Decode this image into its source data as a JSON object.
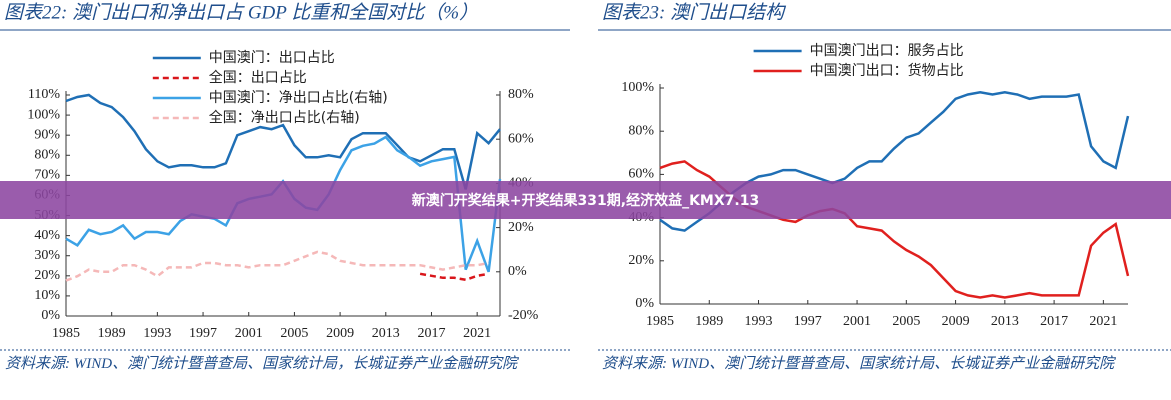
{
  "banner": "新澳门开奖结果+开奖结果331期,经济效益_KMX7.13",
  "chart_data": [
    {
      "type": "line",
      "title": "图表22:  澳门出口和净出口占 GDP 比重和全国对比（%）",
      "source": "资料来源: WIND、澳门统计暨普查局、国家统计局，长城证券产业金融研究院",
      "x": [
        1985,
        1986,
        1987,
        1988,
        1989,
        1990,
        1991,
        1992,
        1993,
        1994,
        1995,
        1996,
        1997,
        1998,
        1999,
        2000,
        2001,
        2002,
        2003,
        2004,
        2005,
        2006,
        2007,
        2008,
        2009,
        2010,
        2011,
        2012,
        2013,
        2014,
        2015,
        2016,
        2017,
        2018,
        2019,
        2020,
        2021,
        2022,
        2023
      ],
      "xlim": [
        1985,
        2023
      ],
      "xticks": [
        1985,
        1989,
        1993,
        1997,
        2001,
        2005,
        2009,
        2013,
        2017,
        2021
      ],
      "ylim": [
        0,
        110
      ],
      "yticks": [
        {
          "value": 0,
          "label": "0%"
        },
        {
          "value": 10,
          "label": "10%"
        },
        {
          "value": 20,
          "label": "20%"
        },
        {
          "value": 30,
          "label": "30%"
        },
        {
          "value": 40,
          "label": "40%"
        },
        {
          "value": 50,
          "label": "50%"
        },
        {
          "value": 60,
          "label": "60%"
        },
        {
          "value": 70,
          "label": "70%"
        },
        {
          "value": 80,
          "label": "80%"
        },
        {
          "value": 90,
          "label": "90%"
        },
        {
          "value": 100,
          "label": "100%"
        },
        {
          "value": 110,
          "label": "110%"
        }
      ],
      "y2lim": [
        -20,
        80
      ],
      "y2ticks": [
        {
          "value": -20,
          "label": "-20%"
        },
        {
          "value": 0,
          "label": "0%"
        },
        {
          "value": 20,
          "label": "20%"
        },
        {
          "value": 40,
          "label": "40%"
        },
        {
          "value": 60,
          "label": "60%"
        },
        {
          "value": 80,
          "label": "80%"
        }
      ],
      "legend": "upper left",
      "series": [
        {
          "name": "中国澳门：出口占比",
          "color": "#1f6fb5",
          "style": "solid",
          "values": [
            107,
            109,
            110,
            106,
            104,
            99,
            92,
            83,
            77,
            74,
            75,
            75,
            74,
            74,
            76,
            90,
            92,
            94,
            93,
            95,
            85,
            79,
            79,
            80,
            79,
            88,
            91,
            91,
            91,
            85,
            79,
            77,
            80,
            83,
            83,
            63,
            91,
            86,
            93
          ]
        },
        {
          "name": "全国：出口占比",
          "color": "#d9161b",
          "style": "dashed",
          "values": [
            null,
            null,
            null,
            null,
            null,
            null,
            null,
            null,
            null,
            null,
            null,
            null,
            null,
            null,
            null,
            null,
            null,
            null,
            null,
            null,
            null,
            null,
            null,
            null,
            null,
            null,
            null,
            null,
            null,
            null,
            null,
            21,
            20,
            19,
            19,
            18,
            20,
            21,
            null
          ]
        },
        {
          "name": "中国澳门：净出口占比(右轴)",
          "color": "#3ca2e6",
          "style": "solid",
          "axis": "y2",
          "values": [
            15,
            12,
            19,
            17,
            18,
            21,
            15,
            18,
            18,
            17,
            23,
            26,
            25,
            24,
            21,
            31,
            33,
            34,
            35,
            41,
            33,
            29,
            28,
            35,
            46,
            55,
            57,
            58,
            61,
            55,
            52,
            48,
            50,
            51,
            52,
            1,
            14,
            0,
            42
          ]
        },
        {
          "name": "全国：净出口占比(右轴)",
          "color": "#f5b8b8",
          "style": "dashed",
          "axis": "y2",
          "values": [
            -4,
            -2,
            1,
            0,
            0,
            3,
            3,
            1,
            -2,
            2,
            2,
            2,
            4,
            4,
            3,
            3,
            2,
            3,
            3,
            3,
            5,
            7,
            9,
            8,
            5,
            4,
            3,
            3,
            3,
            3,
            3,
            3,
            2,
            1,
            2,
            3,
            3,
            4,
            null
          ]
        }
      ]
    },
    {
      "type": "line",
      "title": "图表23:  澳门出口结构",
      "source": "资料来源: WIND、澳门统计暨普查局、国家统计局、长城证券产业金融研究院",
      "x": [
        1985,
        1986,
        1987,
        1988,
        1989,
        1990,
        1991,
        1992,
        1993,
        1994,
        1995,
        1996,
        1997,
        1998,
        1999,
        2000,
        2001,
        2002,
        2003,
        2004,
        2005,
        2006,
        2007,
        2008,
        2009,
        2010,
        2011,
        2012,
        2013,
        2014,
        2015,
        2016,
        2017,
        2018,
        2019,
        2020,
        2021,
        2022,
        2023
      ],
      "xlim": [
        1985,
        2023
      ],
      "xticks": [
        1985,
        1989,
        1993,
        1997,
        2001,
        2005,
        2009,
        2013,
        2017,
        2021
      ],
      "ylim": [
        0,
        100
      ],
      "yticks": [
        {
          "value": 0,
          "label": "0%"
        },
        {
          "value": 20,
          "label": "20%"
        },
        {
          "value": 40,
          "label": "40%"
        },
        {
          "value": 60,
          "label": "60%"
        },
        {
          "value": 80,
          "label": "80%"
        },
        {
          "value": 100,
          "label": "100%"
        }
      ],
      "legend": "upper left",
      "series": [
        {
          "name": "中国澳门出口：服务占比",
          "color": "#1f6fb5",
          "style": "solid",
          "values": [
            39,
            35,
            34,
            38,
            42,
            47,
            52,
            56,
            59,
            60,
            62,
            62,
            60,
            58,
            56,
            58,
            63,
            66,
            66,
            72,
            77,
            79,
            84,
            89,
            95,
            97,
            98,
            97,
            98,
            97,
            95,
            96,
            96,
            96,
            97,
            73,
            66,
            63,
            87
          ]
        },
        {
          "name": "中国澳门出口：货物占比",
          "color": "#e0201e",
          "style": "solid",
          "values": [
            63,
            65,
            66,
            62,
            59,
            54,
            49,
            45,
            43,
            41,
            39,
            38,
            41,
            43,
            44,
            42,
            36,
            35,
            34,
            29,
            25,
            22,
            18,
            12,
            6,
            4,
            3,
            4,
            3,
            4,
            5,
            4,
            4,
            4,
            4,
            27,
            33,
            37,
            13
          ]
        }
      ]
    }
  ]
}
